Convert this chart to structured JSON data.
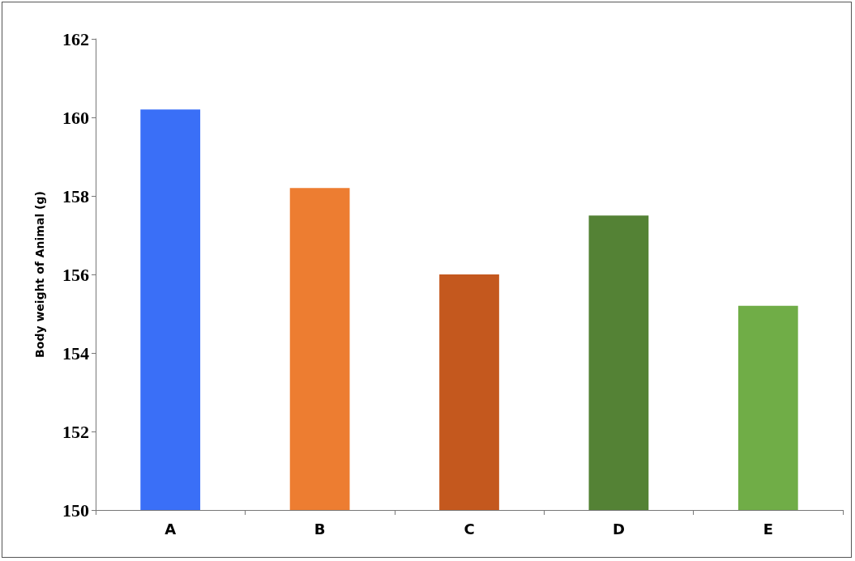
{
  "chart_data": {
    "type": "bar",
    "ylabel": "Body weight of Animal (g)",
    "categories": [
      "A",
      "B",
      "C",
      "D",
      "E"
    ],
    "values": [
      160.2,
      158.2,
      156.0,
      157.5,
      155.2
    ],
    "colors": [
      "#3a6ff7",
      "#ed7d31",
      "#c4581e",
      "#548235",
      "#70ad47"
    ],
    "ylim": [
      150,
      162
    ],
    "yticks": [
      150,
      152,
      154,
      156,
      158,
      160,
      162
    ],
    "grid": false
  }
}
